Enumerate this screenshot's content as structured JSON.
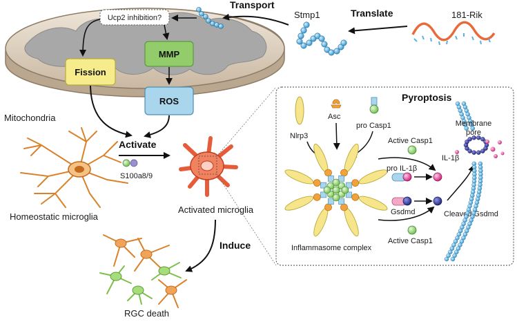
{
  "mitochondria": {
    "label": "Mitochondria",
    "question_box": "Ucp2 inhibition?",
    "fission": "Fission",
    "mmp": "MMP",
    "ros": "ROS"
  },
  "transport_label": "Transport",
  "translate_label": "Translate",
  "stmp1_label": "Stmp1",
  "rik_label": "181-Rik",
  "activate_label": "Activate",
  "s100_label": "S100a8/9",
  "homeostatic_label": "Homeostatic microglia",
  "activated_label": "Activated microglia",
  "induce_label": "Induce",
  "rgc_label": "RGC death",
  "pyroptosis": {
    "title": "Pyroptosis",
    "nlrp3": "Nlrp3",
    "asc": "Asc",
    "pro_casp1": "pro Casp1",
    "active_casp1_top": "Active Casp1",
    "pro_il1b": "pro IL-1β",
    "il1b": "IL-1β",
    "gsdmd": "Gsdmd",
    "cleaved_gsdmd": "Cleaved Gsdmd",
    "active_casp1_bottom": "Active Casp1",
    "membrane_pore": [
      "Membrane",
      "pore"
    ],
    "inflammasome": "Inflammasome complex"
  },
  "colors": {
    "fission": "#f7ec8c",
    "mmp": "#93cc6b",
    "ros": "#a9d6ec",
    "membrane": "#3aa6dc",
    "microglia_activated": "#e65c3a",
    "microglia_homeostatic": "#f0a45a",
    "nlrp3": "#f6e58a",
    "il1b": "#d6217a",
    "gsdmd": "#2b2f8c"
  }
}
